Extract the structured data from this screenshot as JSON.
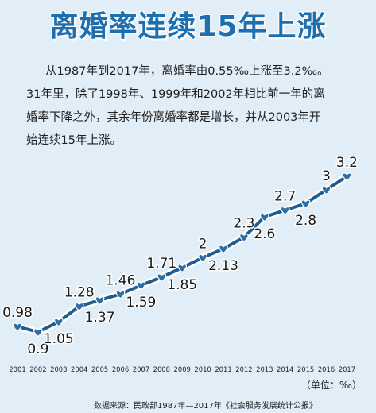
{
  "title": "离婚率连续15年上涨",
  "intro": {
    "line1": "从1987年到2017年，离婚率由0.55‰上涨至3.2‰。",
    "line2": "31年里，除了1998年、1999年和2002年相比前一年的离",
    "line3": "婚率下降之外，其余年份离婚率都是增长，并从2003年开",
    "line4": "始连续15年上涨。"
  },
  "unit_label": "（单位：‰）",
  "source": "数据来源：民政部1987年—2017年《社会服务发展统计公报》",
  "colors": {
    "background": "#e2eef7",
    "title": "#1d6fb0",
    "line": "#1e5d93",
    "marker": "#2d6ea6"
  },
  "chart_data": {
    "type": "line",
    "x": [
      "2001",
      "2002",
      "2003",
      "2004",
      "2005",
      "2006",
      "2007",
      "2008",
      "2009",
      "2010",
      "2011",
      "2012",
      "2013",
      "2014",
      "2015",
      "2016",
      "2017"
    ],
    "values": [
      0.98,
      0.9,
      1.05,
      1.28,
      1.37,
      1.46,
      1.59,
      1.71,
      1.85,
      2,
      2.13,
      2.3,
      2.6,
      2.7,
      2.8,
      3,
      3.2
    ],
    "labels": [
      "0.98",
      "0.9",
      "1.05",
      "1.28",
      "1.37",
      "1.46",
      "1.59",
      "1.71",
      "1.85",
      "2",
      "2.13",
      "2.3",
      "2.6",
      "2.7",
      "2.8",
      "3",
      "3.2"
    ],
    "label_position": [
      "above",
      "below",
      "below",
      "above",
      "below",
      "above",
      "below",
      "above",
      "below",
      "above",
      "below",
      "above",
      "below",
      "above",
      "below",
      "above",
      "above"
    ],
    "ylim": [
      0.9,
      3.2
    ],
    "grid": false,
    "legend": "none"
  }
}
